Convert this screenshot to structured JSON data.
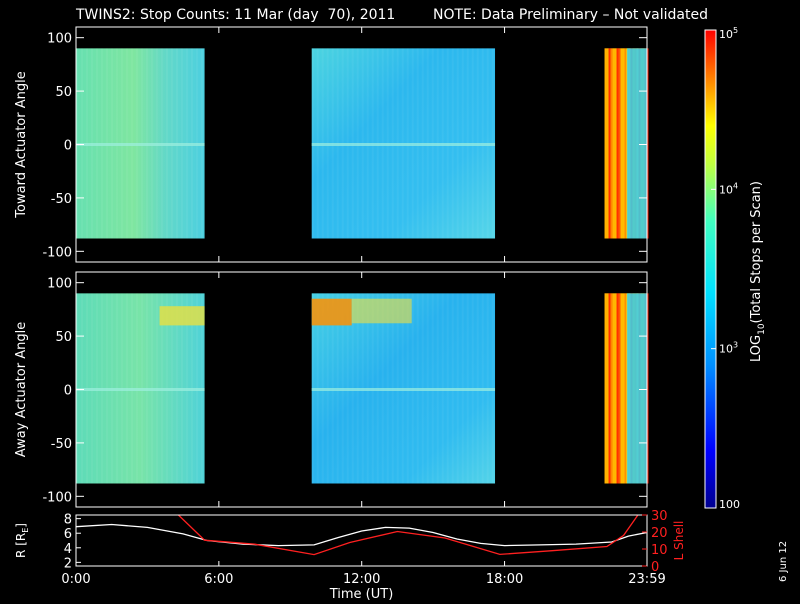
{
  "title": {
    "main": "TWINS2: Stop Counts: 11 Mar (day  70), 2011",
    "note": "NOTE: Data Preliminary – Not validated",
    "note_color": "#ff2020"
  },
  "colorbar": {
    "label": "LOG10(Total Stops per Scan)",
    "label_pre": "LOG",
    "label_sub": "10",
    "label_post": "(Total Stops per Scan)",
    "scale": "log",
    "range": [
      100,
      100000
    ],
    "ticks": [
      {
        "value": 100,
        "label": "100"
      },
      {
        "value": 1000,
        "label": "10",
        "exp": "3"
      },
      {
        "value": 10000,
        "label": "10",
        "exp": "4"
      },
      {
        "value": 100000,
        "label": "10",
        "exp": "5"
      }
    ]
  },
  "footer_date": "6 Jun 12",
  "chart_data": [
    {
      "type": "heatmap",
      "ylabel": "Toward Actuator Angle",
      "ylim": [
        -110,
        110
      ],
      "yticks": [
        "100",
        "50",
        "0",
        "-50",
        "-100"
      ],
      "ytick_values": [
        100,
        50,
        0,
        -50,
        -100
      ],
      "xlim": [
        0,
        24
      ],
      "data_angle_range": [
        -88,
        90
      ],
      "blocks": [
        {
          "t_start": 0.0,
          "t_end": 5.4,
          "counts_level": "approx 1000-3000"
        },
        {
          "t_start": 9.9,
          "t_end": 17.6,
          "counts_level": "approx 500-2000"
        },
        {
          "t_start": 22.2,
          "t_end": 23.99,
          "counts_level": "approx 1000-100000, variable"
        }
      ]
    },
    {
      "type": "heatmap",
      "ylabel": "Away Actuator Angle",
      "ylim": [
        -110,
        110
      ],
      "yticks": [
        "100",
        "50",
        "0",
        "-50",
        "-100"
      ],
      "ytick_values": [
        100,
        50,
        0,
        -50,
        -100
      ],
      "xlim": [
        0,
        24
      ],
      "data_angle_range": [
        -88,
        90
      ],
      "blocks": [
        {
          "t_start": 0.0,
          "t_end": 5.4,
          "counts_level": "approx 1000-10000"
        },
        {
          "t_start": 9.9,
          "t_end": 17.6,
          "counts_level": "approx 500-30000"
        },
        {
          "t_start": 22.2,
          "t_end": 23.99,
          "counts_level": "approx 1000-100000, variable"
        }
      ]
    },
    {
      "type": "line",
      "xlabel": "Time (UT)",
      "xlim": [
        0,
        23.983
      ],
      "xticks": [
        {
          "value": 0,
          "label": "0:00"
        },
        {
          "value": 6,
          "label": "6:00"
        },
        {
          "value": 12,
          "label": "12:00"
        },
        {
          "value": 18,
          "label": "18:00"
        },
        {
          "value": 23.983,
          "label": "23:59"
        }
      ],
      "ylabel_left": "R [RE]",
      "ylabel_left_pre": "R [R",
      "ylabel_left_sub": "E",
      "ylabel_left_post": "]",
      "ylim_left": [
        1.5,
        8.5
      ],
      "yticks_left": [
        "8",
        "6",
        "4",
        "2"
      ],
      "ytick_values_left": [
        8,
        6,
        4,
        2
      ],
      "ylabel_right": "L Shell",
      "ylim_right": [
        0,
        30
      ],
      "yticks_right": [
        "30",
        "20",
        "10",
        "0"
      ],
      "ytick_values_right": [
        30,
        20,
        10,
        0
      ],
      "right_axis_color": "#ff2020",
      "series": [
        {
          "axis": "left",
          "color": "#ffffff",
          "x": [
            0,
            1.5,
            3,
            4.5,
            5.5,
            7,
            8.5,
            10,
            11,
            12,
            13,
            14,
            15,
            16,
            17,
            18,
            19.5,
            21,
            22.5,
            23.2,
            23.983
          ],
          "y": [
            6.9,
            7.2,
            6.8,
            5.9,
            5.0,
            4.5,
            4.3,
            4.4,
            5.4,
            6.3,
            6.8,
            6.7,
            6.1,
            5.2,
            4.6,
            4.3,
            4.4,
            4.5,
            4.8,
            5.6,
            6.1
          ]
        },
        {
          "axis": "right",
          "color": "#ff2020",
          "x": [
            4.3,
            5.4,
            7.5,
            10.0,
            11.5,
            13.5,
            15.5,
            17.8,
            20,
            22.3,
            23.0,
            23.6
          ],
          "y": [
            30,
            15.2,
            12.8,
            6.7,
            13.8,
            20.3,
            16.5,
            6.8,
            9.0,
            11.5,
            18,
            30
          ]
        }
      ]
    }
  ]
}
